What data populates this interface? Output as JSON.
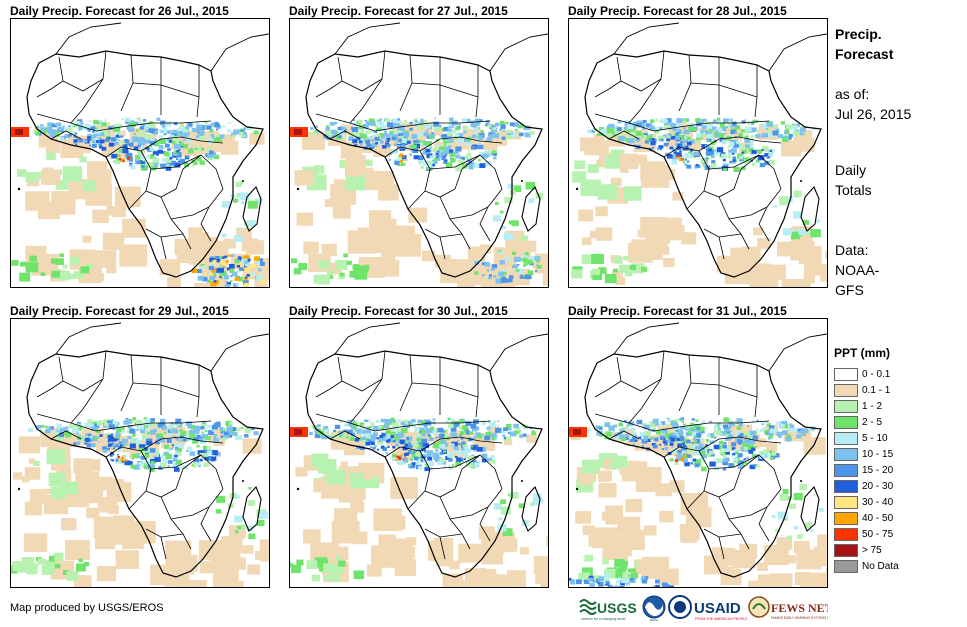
{
  "panels": [
    {
      "title": "Daily Precip. Forecast for 26 Jul., 2015",
      "day": 0
    },
    {
      "title": "Daily Precip. Forecast for 27 Jul., 2015",
      "day": 1
    },
    {
      "title": "Daily Precip. Forecast for 28 Jul., 2015",
      "day": 2
    },
    {
      "title": "Daily Precip. Forecast for 29 Jul., 2015",
      "day": 3
    },
    {
      "title": "Daily Precip. Forecast for 30 Jul., 2015",
      "day": 4
    },
    {
      "title": "Daily Precip. Forecast for 31 Jul., 2015",
      "day": 5
    }
  ],
  "sidebar": {
    "title_line1": "Precip.",
    "title_line2": "Forecast",
    "asof_line1": "as of:",
    "asof_line2": "Jul 26, 2015",
    "totals_line1": "Daily",
    "totals_line2": "Totals",
    "data_line1": "Data:",
    "data_line2": "NOAA-",
    "data_line3": "GFS"
  },
  "legend": {
    "title": "PPT (mm)",
    "items": [
      {
        "label": "0 - 0.1",
        "color": "#ffffff"
      },
      {
        "label": "0.1 - 1",
        "color": "#f1d9b5"
      },
      {
        "label": "1 - 2",
        "color": "#b8f2b0"
      },
      {
        "label": "2 - 5",
        "color": "#6fe36a"
      },
      {
        "label": "5 - 10",
        "color": "#b7eef5"
      },
      {
        "label": "10 - 15",
        "color": "#7ec0ee"
      },
      {
        "label": "15 - 20",
        "color": "#4c95e8"
      },
      {
        "label": "20 - 30",
        "color": "#1f5fdc"
      },
      {
        "label": "30 - 40",
        "color": "#ffe680"
      },
      {
        "label": "40 - 50",
        "color": "#ffa500"
      },
      {
        "label": "50 - 75",
        "color": "#ff3300"
      },
      {
        "label": "> 75",
        "color": "#a31515"
      },
      {
        "label": "No Data",
        "color": "#999999"
      }
    ]
  },
  "footer": {
    "credit": "Map produced by USGS/EROS",
    "logos": [
      "USGS",
      "NOAA",
      "USAID",
      "FEWS NET"
    ]
  }
}
